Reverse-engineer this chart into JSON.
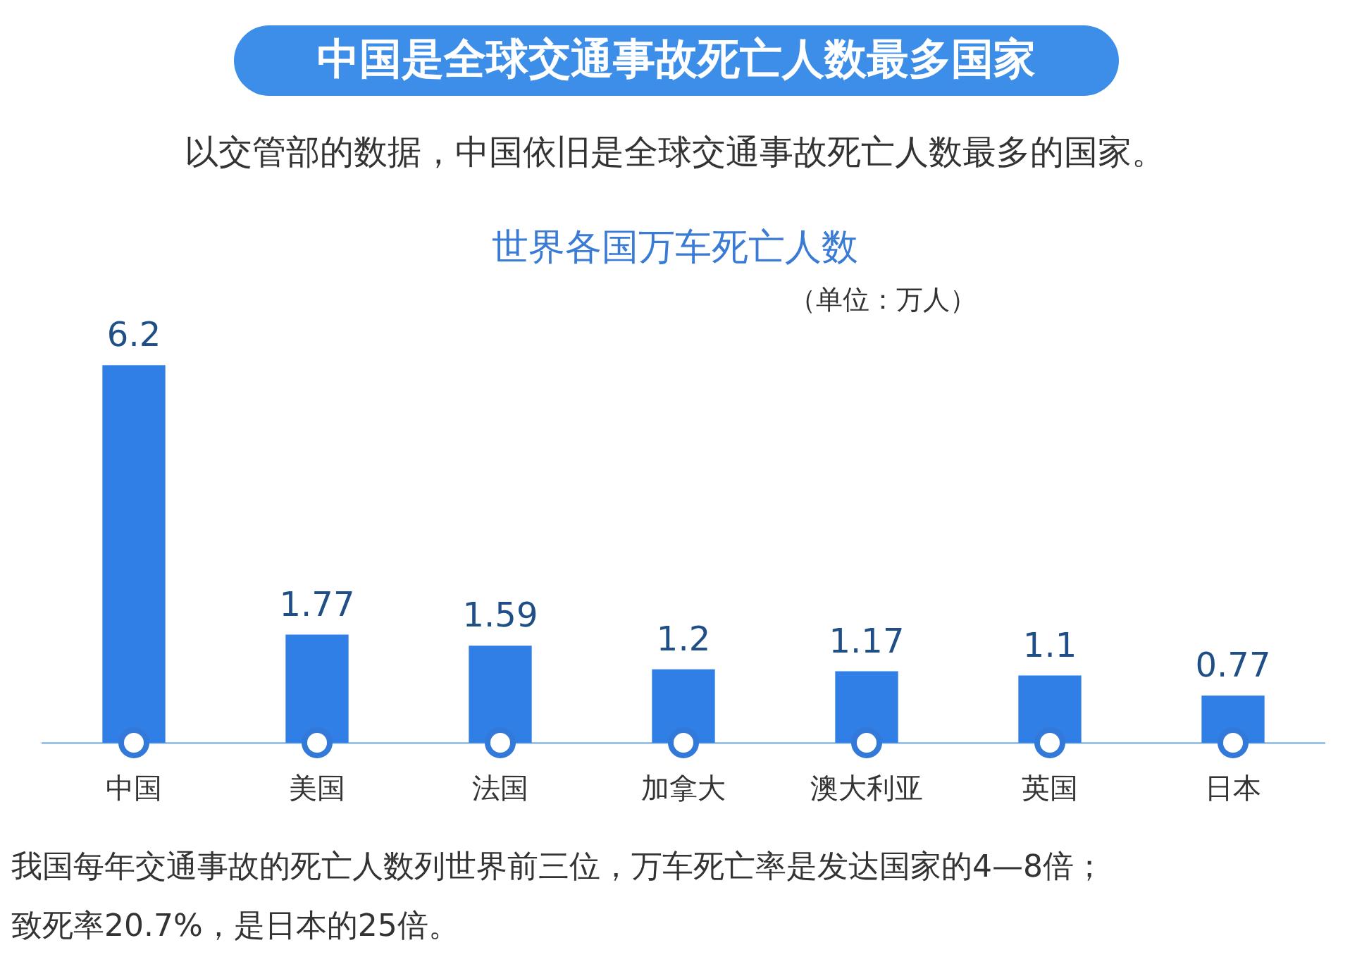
{
  "chart_data": {
    "type": "bar",
    "title": "中国是全球交通事故死亡人数最多国家",
    "subtitle": "以交管部的数据，中国依旧是全球交通事故死亡人数最多的国家。",
    "categories": [
      "中国",
      "美国",
      "法国",
      "加拿大",
      "澳大利亚",
      "英国",
      "日本"
    ],
    "values": [
      6.2,
      1.77,
      1.59,
      1.2,
      1.17,
      1.1,
      0.77
    ],
    "color": "#2f7fe6",
    "data_labels": true,
    "legend": false,
    "grid": false,
    "annotations": [
      "世界各国万车死亡人数",
      "（单位：万人）",
      "我国每年交通事故的死亡人数列世界前三位，万车死亡率是发达国家的4—8倍；",
      "致死率20.7%，是日本的25倍。"
    ]
  }
}
